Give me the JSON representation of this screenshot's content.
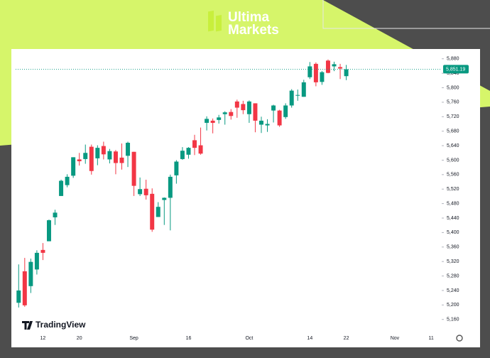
{
  "brand": {
    "line1": "Ultima",
    "line2": "Markets"
  },
  "watermark": "TradingView",
  "chart_data": {
    "type": "candlestick",
    "categories": [
      null,
      null,
      null,
      null,
      "12",
      null,
      null,
      null,
      null,
      null,
      "20",
      null,
      null,
      null,
      null,
      null,
      null,
      null,
      null,
      "Sep",
      null,
      null,
      null,
      null,
      null,
      null,
      null,
      null,
      "16",
      null,
      null,
      null,
      null,
      null,
      null,
      null,
      null,
      null,
      "Oct",
      null,
      null,
      null,
      null,
      null,
      null,
      null,
      null,
      null,
      "14",
      null,
      null,
      null,
      null,
      null,
      "22",
      null,
      null,
      null,
      null,
      null,
      null,
      null,
      "Nov",
      null,
      null,
      null,
      null,
      null,
      "11",
      null
    ],
    "open": [
      5206,
      5293,
      5252,
      5298,
      5352,
      5376,
      5442,
      5501,
      5531,
      5557,
      5602,
      5603,
      5637,
      5605,
      5639,
      5602,
      5624,
      5607,
      5612,
      5623,
      5506,
      5521,
      5507,
      5443,
      5490,
      5496,
      5558,
      5603,
      5615,
      5655,
      5641,
      5703,
      5709,
      5711,
      5727,
      5733,
      5762,
      5755,
      5727,
      5757,
      5698,
      5696,
      5737,
      5737,
      5719,
      5751,
      5778,
      5775,
      5829,
      5866,
      5816,
      5875,
      5859,
      5857,
      5832,
      null,
      null,
      null,
      null,
      null,
      null,
      null,
      null,
      null,
      null,
      null,
      null,
      null,
      null,
      null
    ],
    "high": [
      5312,
      5330,
      5328,
      5351,
      5371,
      5436,
      5463,
      5546,
      5561,
      5608,
      5620,
      5643,
      5643,
      5641,
      5651,
      5631,
      5628,
      5646,
      5651,
      5623,
      5552,
      5546,
      5522,
      5484,
      5497,
      5560,
      5600,
      5636,
      5636,
      5670,
      5690,
      5721,
      5715,
      5725,
      5735,
      5741,
      5767,
      5764,
      5765,
      5757,
      5720,
      5713,
      5753,
      5739,
      5757,
      5796,
      5795,
      5822,
      5871,
      5870,
      5846,
      5878,
      5872,
      5866,
      5863,
      null,
      null,
      null,
      null,
      null,
      null,
      null,
      null,
      null,
      null,
      null,
      null,
      null,
      null,
      null
    ],
    "low": [
      5193,
      5195,
      5233,
      5284,
      5324,
      5376,
      5421,
      5501,
      5525,
      5551,
      5585,
      5590,
      5560,
      5586,
      5602,
      5591,
      5561,
      5574,
      5581,
      5501,
      5501,
      5491,
      5402,
      5443,
      5421,
      5406,
      5535,
      5601,
      5604,
      5614,
      5615,
      5682,
      5674,
      5701,
      5698,
      5712,
      5717,
      5727,
      5703,
      5677,
      5675,
      5678,
      5704,
      5692,
      5714,
      5745,
      5764,
      5775,
      5824,
      5804,
      5808,
      5840,
      5846,
      5824,
      5821,
      null,
      null,
      null,
      null,
      null,
      null,
      null,
      null,
      null,
      null,
      null,
      null,
      null,
      null,
      null
    ],
    "close": [
      5240,
      5199,
      5319,
      5344,
      5344,
      5434,
      5455,
      5543,
      5554,
      5608,
      5597,
      5620,
      5570,
      5634,
      5616,
      5625,
      5592,
      5592,
      5648,
      5529,
      5520,
      5503,
      5408,
      5471,
      5496,
      5554,
      5596,
      5626,
      5634,
      5634,
      5618,
      5714,
      5703,
      5718,
      5732,
      5722,
      5745,
      5738,
      5762,
      5709,
      5709,
      5700,
      5751,
      5696,
      5751,
      5792,
      5780,
      5815,
      5859,
      5815,
      5843,
      5841,
      5865,
      5853,
      5851,
      null,
      null,
      null,
      null,
      null,
      null,
      null,
      null,
      null,
      null,
      null,
      null,
      null,
      null,
      null
    ],
    "up_color": "#089981",
    "down_color": "#f23645",
    "ylim": [
      5130,
      5905
    ],
    "yticks": [
      {
        "value": 5160,
        "label": "5,160"
      },
      {
        "value": 5200,
        "label": "5,200"
      },
      {
        "value": 5240,
        "label": "5,240"
      },
      {
        "value": 5280,
        "label": "5,280"
      },
      {
        "value": 5320,
        "label": "5,320"
      },
      {
        "value": 5360,
        "label": "5,360"
      },
      {
        "value": 5400,
        "label": "5,400"
      },
      {
        "value": 5440,
        "label": "5,440"
      },
      {
        "value": 5480,
        "label": "5,480"
      },
      {
        "value": 5520,
        "label": "5,520"
      },
      {
        "value": 5560,
        "label": "5,560"
      },
      {
        "value": 5600,
        "label": "5,600"
      },
      {
        "value": 5640,
        "label": "5,640"
      },
      {
        "value": 5680,
        "label": "5,680"
      },
      {
        "value": 5720,
        "label": "5,720"
      },
      {
        "value": 5760,
        "label": "5,760"
      },
      {
        "value": 5800,
        "label": "5,800"
      },
      {
        "value": 5840,
        "label": "5,840"
      },
      {
        "value": 5880,
        "label": "5,880"
      }
    ],
    "last_price": {
      "value": 5851.19,
      "label": "5,851.19"
    }
  }
}
